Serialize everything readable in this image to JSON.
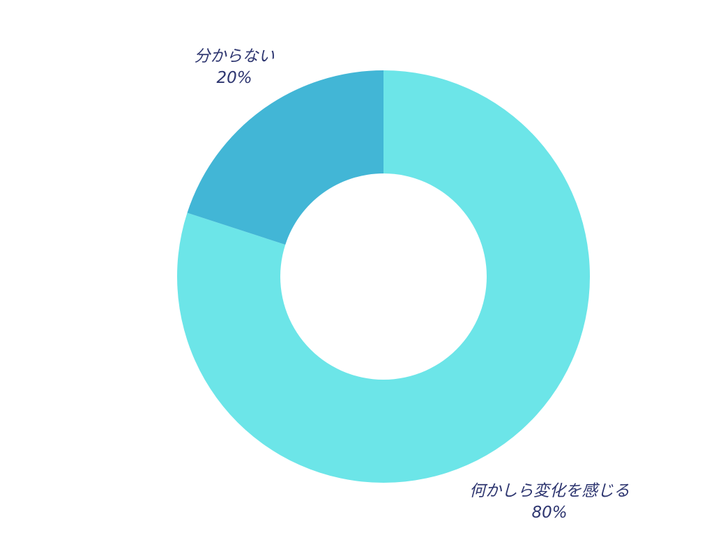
{
  "chart_data": {
    "type": "pie",
    "donut": true,
    "title": "",
    "start": "top",
    "direction": "clockwise",
    "slices": [
      {
        "label": "何かしら変化を感じる",
        "value": 80,
        "value_label": "80%",
        "color": "#6ce5e8"
      },
      {
        "label": "分からない",
        "value": 20,
        "value_label": "20%",
        "color": "#42b6d6"
      }
    ]
  }
}
